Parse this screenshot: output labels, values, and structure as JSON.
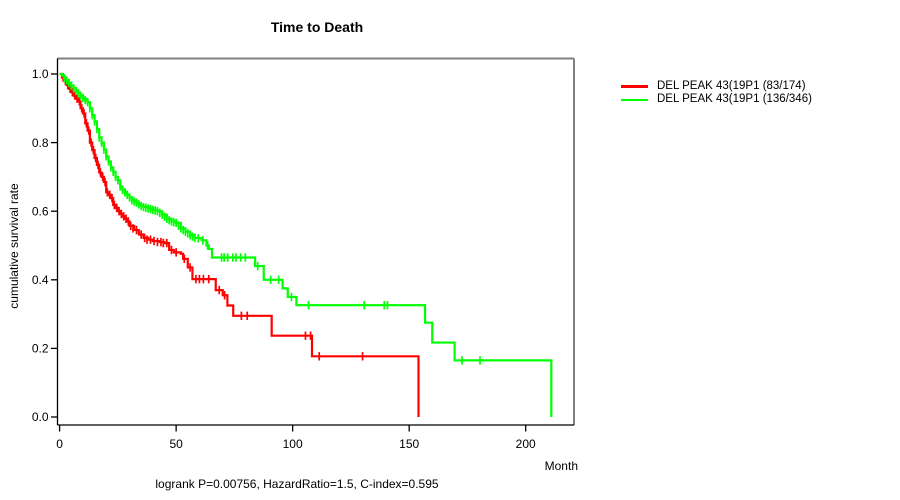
{
  "title": "Time to Death",
  "footer": "logrank P=0.00756, HazardRatio=1.5, C-index=0.595",
  "axes": {
    "xlabel": "Month",
    "ylabel": "cumulative survival rate"
  },
  "colors": {
    "series1": "#ff0000",
    "series2": "#00ff00",
    "box_gray": "#808080",
    "axis_black": "#000000"
  },
  "legend": {
    "items": [
      {
        "label": "DEL PEAK 43(19P1 (83/174)",
        "color": "#ff0000"
      },
      {
        "label": "DEL PEAK 43(19P1 (136/346)",
        "color": "#00ff00"
      }
    ]
  },
  "chart_data": {
    "type": "line",
    "subtype": "kaplan-meier-step",
    "title": "Time to Death",
    "xlabel": "Month",
    "ylabel": "cumulative survival rate",
    "annotation": "logrank P=0.00756, HazardRatio=1.5, C-index=0.595",
    "xlim": [
      0,
      220
    ],
    "ylim": [
      0.0,
      1.0
    ],
    "xticks": [
      0,
      50,
      100,
      150,
      200
    ],
    "yticks": [
      0.0,
      0.2,
      0.4,
      0.6,
      0.8,
      1.0
    ],
    "grid": false,
    "legend_position": "right-outside",
    "series": [
      {
        "name": "DEL PEAK 43(19P1 (83/174)",
        "color": "#ff0000",
        "events_total": "83/174",
        "steps": [
          [
            0,
            1.0
          ],
          [
            1,
            0.99
          ],
          [
            2,
            0.98
          ],
          [
            3,
            0.968
          ],
          [
            4,
            0.957
          ],
          [
            5,
            0.947
          ],
          [
            6,
            0.937
          ],
          [
            7,
            0.928
          ],
          [
            8,
            0.92
          ],
          [
            9,
            0.9
          ],
          [
            10,
            0.885
          ],
          [
            11,
            0.856
          ],
          [
            12,
            0.835
          ],
          [
            13,
            0.8
          ],
          [
            14,
            0.778
          ],
          [
            15,
            0.755
          ],
          [
            16,
            0.735
          ],
          [
            17,
            0.713
          ],
          [
            18,
            0.7
          ],
          [
            19,
            0.685
          ],
          [
            20,
            0.655
          ],
          [
            21,
            0.648
          ],
          [
            22,
            0.638
          ],
          [
            23,
            0.618
          ],
          [
            24,
            0.61
          ],
          [
            25,
            0.6
          ],
          [
            26,
            0.592
          ],
          [
            27,
            0.585
          ],
          [
            28,
            0.578
          ],
          [
            29,
            0.57
          ],
          [
            30,
            0.557
          ],
          [
            32,
            0.545
          ],
          [
            34,
            0.532
          ],
          [
            36,
            0.522
          ],
          [
            38,
            0.517
          ],
          [
            40,
            0.513
          ],
          [
            43,
            0.51
          ],
          [
            45,
            0.507
          ],
          [
            47,
            0.487
          ],
          [
            49,
            0.48
          ],
          [
            52,
            0.476
          ],
          [
            53,
            0.461
          ],
          [
            55,
            0.436
          ],
          [
            57,
            0.402
          ],
          [
            67,
            0.37
          ],
          [
            70,
            0.355
          ],
          [
            72,
            0.325
          ],
          [
            74.5,
            0.295
          ],
          [
            91,
            0.237
          ],
          [
            108.3,
            0.177
          ],
          [
            154,
            0.0
          ]
        ],
        "censors": [
          [
            1.5,
            0.99
          ],
          [
            2.5,
            0.98
          ],
          [
            3.5,
            0.968
          ],
          [
            4.5,
            0.957
          ],
          [
            5.5,
            0.947
          ],
          [
            6.5,
            0.937
          ],
          [
            7.5,
            0.928
          ],
          [
            8.5,
            0.92
          ],
          [
            9.5,
            0.9
          ],
          [
            10.5,
            0.885
          ],
          [
            11.5,
            0.856
          ],
          [
            12.5,
            0.835
          ],
          [
            13.5,
            0.8
          ],
          [
            14.5,
            0.778
          ],
          [
            15.5,
            0.755
          ],
          [
            16.5,
            0.735
          ],
          [
            17.5,
            0.713
          ],
          [
            18.5,
            0.7
          ],
          [
            19.5,
            0.685
          ],
          [
            20.5,
            0.655
          ],
          [
            21.5,
            0.648
          ],
          [
            22.5,
            0.638
          ],
          [
            23.5,
            0.618
          ],
          [
            24.5,
            0.61
          ],
          [
            25.5,
            0.6
          ],
          [
            26.5,
            0.592
          ],
          [
            27.5,
            0.585
          ],
          [
            28.5,
            0.578
          ],
          [
            29.5,
            0.57
          ],
          [
            30.5,
            0.557
          ],
          [
            31.5,
            0.55
          ],
          [
            33,
            0.545
          ],
          [
            35,
            0.532
          ],
          [
            36.5,
            0.522
          ],
          [
            37.5,
            0.517
          ],
          [
            39,
            0.517
          ],
          [
            40.5,
            0.513
          ],
          [
            42,
            0.51
          ],
          [
            43.5,
            0.51
          ],
          [
            44.5,
            0.507
          ],
          [
            46,
            0.507
          ],
          [
            48,
            0.487
          ],
          [
            50,
            0.48
          ],
          [
            53.5,
            0.461
          ],
          [
            56,
            0.436
          ],
          [
            58.5,
            0.402
          ],
          [
            60,
            0.402
          ],
          [
            61.7,
            0.402
          ],
          [
            64,
            0.402
          ],
          [
            68.5,
            0.37
          ],
          [
            70.8,
            0.355
          ],
          [
            78,
            0.295
          ],
          [
            80.5,
            0.295
          ],
          [
            105.5,
            0.237
          ],
          [
            107.7,
            0.237
          ],
          [
            111.4,
            0.177
          ],
          [
            130,
            0.177
          ]
        ]
      },
      {
        "name": "DEL PEAK 43(19P1 (136/346)",
        "color": "#00ff00",
        "events_total": "136/346",
        "steps": [
          [
            0,
            1.0
          ],
          [
            1,
            0.995
          ],
          [
            2,
            0.988
          ],
          [
            3,
            0.981
          ],
          [
            4,
            0.974
          ],
          [
            5,
            0.966
          ],
          [
            6,
            0.958
          ],
          [
            7,
            0.951
          ],
          [
            8,
            0.944
          ],
          [
            9,
            0.937
          ],
          [
            10,
            0.93
          ],
          [
            11,
            0.924
          ],
          [
            12,
            0.918
          ],
          [
            13,
            0.9
          ],
          [
            14,
            0.88
          ],
          [
            15,
            0.862
          ],
          [
            16,
            0.84
          ],
          [
            17,
            0.815
          ],
          [
            18,
            0.8
          ],
          [
            19,
            0.78
          ],
          [
            20,
            0.76
          ],
          [
            21,
            0.745
          ],
          [
            22,
            0.728
          ],
          [
            23,
            0.715
          ],
          [
            24,
            0.7
          ],
          [
            25,
            0.69
          ],
          [
            26,
            0.672
          ],
          [
            27,
            0.662
          ],
          [
            28,
            0.655
          ],
          [
            29,
            0.648
          ],
          [
            30,
            0.64
          ],
          [
            31,
            0.632
          ],
          [
            32,
            0.628
          ],
          [
            33,
            0.625
          ],
          [
            34,
            0.62
          ],
          [
            35,
            0.615
          ],
          [
            36,
            0.612
          ],
          [
            38,
            0.608
          ],
          [
            40,
            0.604
          ],
          [
            42,
            0.6
          ],
          [
            44,
            0.59
          ],
          [
            46,
            0.578
          ],
          [
            48,
            0.57
          ],
          [
            50,
            0.566
          ],
          [
            52,
            0.55
          ],
          [
            54,
            0.54
          ],
          [
            56,
            0.53
          ],
          [
            58,
            0.522
          ],
          [
            60,
            0.521
          ],
          [
            61,
            0.515
          ],
          [
            63,
            0.5
          ],
          [
            64,
            0.49
          ],
          [
            65.4,
            0.465
          ],
          [
            83.9,
            0.44
          ],
          [
            87.6,
            0.4
          ],
          [
            95.7,
            0.375
          ],
          [
            97.9,
            0.35
          ],
          [
            101.6,
            0.326
          ],
          [
            156.8,
            0.275
          ],
          [
            159.9,
            0.217
          ],
          [
            169.5,
            0.165
          ],
          [
            211,
            0.0
          ]
        ],
        "censors": [
          [
            2,
            0.988
          ],
          [
            3,
            0.981
          ],
          [
            4,
            0.974
          ],
          [
            5,
            0.966
          ],
          [
            6,
            0.958
          ],
          [
            7,
            0.951
          ],
          [
            8,
            0.944
          ],
          [
            9,
            0.937
          ],
          [
            10,
            0.93
          ],
          [
            11,
            0.924
          ],
          [
            12,
            0.918
          ],
          [
            13,
            0.9
          ],
          [
            14,
            0.88
          ],
          [
            15,
            0.862
          ],
          [
            16,
            0.84
          ],
          [
            17,
            0.815
          ],
          [
            18,
            0.8
          ],
          [
            19,
            0.78
          ],
          [
            20,
            0.76
          ],
          [
            21,
            0.745
          ],
          [
            22,
            0.728
          ],
          [
            23,
            0.715
          ],
          [
            24,
            0.7
          ],
          [
            25,
            0.69
          ],
          [
            26,
            0.672
          ],
          [
            27,
            0.662
          ],
          [
            28,
            0.655
          ],
          [
            29,
            0.648
          ],
          [
            30,
            0.64
          ],
          [
            31,
            0.632
          ],
          [
            32,
            0.628
          ],
          [
            33,
            0.625
          ],
          [
            34,
            0.62
          ],
          [
            35,
            0.615
          ],
          [
            36,
            0.612
          ],
          [
            37,
            0.61
          ],
          [
            38,
            0.608
          ],
          [
            39,
            0.606
          ],
          [
            40,
            0.604
          ],
          [
            41,
            0.602
          ],
          [
            42,
            0.6
          ],
          [
            43,
            0.595
          ],
          [
            44,
            0.59
          ],
          [
            45,
            0.584
          ],
          [
            46,
            0.578
          ],
          [
            47,
            0.574
          ],
          [
            48,
            0.57
          ],
          [
            49,
            0.568
          ],
          [
            50,
            0.566
          ],
          [
            51,
            0.558
          ],
          [
            52,
            0.55
          ],
          [
            53,
            0.545
          ],
          [
            54,
            0.54
          ],
          [
            55,
            0.535
          ],
          [
            56,
            0.53
          ],
          [
            57,
            0.526
          ],
          [
            58,
            0.522
          ],
          [
            59.5,
            0.521
          ],
          [
            61.5,
            0.515
          ],
          [
            63.5,
            0.5
          ],
          [
            69.5,
            0.465
          ],
          [
            70.6,
            0.465
          ],
          [
            72.1,
            0.465
          ],
          [
            74.3,
            0.465
          ],
          [
            75.7,
            0.465
          ],
          [
            77.7,
            0.465
          ],
          [
            79.7,
            0.465
          ],
          [
            85,
            0.44
          ],
          [
            90.6,
            0.4
          ],
          [
            94,
            0.4
          ],
          [
            99.5,
            0.35
          ],
          [
            106.8,
            0.326
          ],
          [
            130.7,
            0.326
          ],
          [
            139.3,
            0.326
          ],
          [
            140.7,
            0.326
          ],
          [
            172.7,
            0.165
          ],
          [
            180.4,
            0.165
          ]
        ]
      }
    ]
  }
}
